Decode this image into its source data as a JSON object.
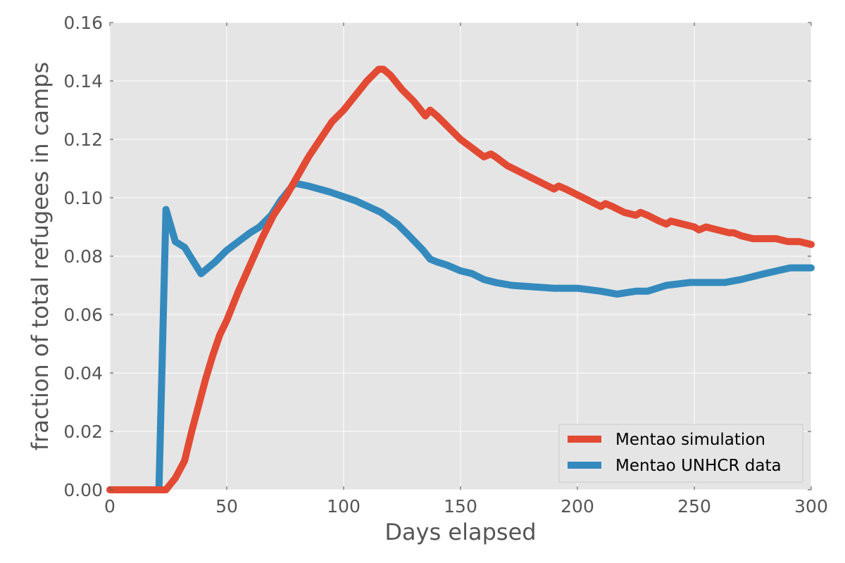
{
  "chart_data": {
    "type": "line",
    "title": "",
    "xlabel": "Days elapsed",
    "ylabel": "fraction of total refugees in camps",
    "xlim": [
      0,
      300
    ],
    "ylim": [
      0,
      0.16
    ],
    "xticks": [
      0,
      50,
      100,
      150,
      200,
      250,
      300
    ],
    "yticks": [
      0.0,
      0.02,
      0.04,
      0.06,
      0.08,
      0.1,
      0.12,
      0.14,
      0.16
    ],
    "xtick_labels": [
      "0",
      "50",
      "100",
      "150",
      "200",
      "250",
      "300"
    ],
    "ytick_labels": [
      "0.00",
      "0.02",
      "0.04",
      "0.06",
      "0.08",
      "0.10",
      "0.12",
      "0.14",
      "0.16"
    ],
    "grid": true,
    "legend_position": "lower-right",
    "series": [
      {
        "name": "Mentao simulation",
        "color": "#E24A33",
        "x": [
          0,
          24,
          26,
          28,
          30,
          32,
          35,
          38,
          41,
          44,
          47,
          50,
          55,
          60,
          65,
          70,
          75,
          80,
          85,
          90,
          95,
          100,
          105,
          110,
          115,
          117,
          120,
          125,
          130,
          135,
          137,
          140,
          145,
          150,
          155,
          160,
          163,
          165,
          170,
          175,
          180,
          185,
          190,
          192,
          195,
          200,
          205,
          210,
          212,
          215,
          220,
          225,
          227,
          230,
          235,
          238,
          240,
          245,
          250,
          252,
          255,
          260,
          265,
          267,
          270,
          275,
          280,
          282,
          285,
          290,
          292,
          295,
          300
        ],
        "y": [
          0.0,
          0.0,
          0.002,
          0.004,
          0.007,
          0.01,
          0.02,
          0.029,
          0.038,
          0.046,
          0.053,
          0.058,
          0.068,
          0.077,
          0.086,
          0.094,
          0.1,
          0.107,
          0.114,
          0.12,
          0.126,
          0.13,
          0.135,
          0.14,
          0.144,
          0.144,
          0.142,
          0.137,
          0.133,
          0.128,
          0.13,
          0.128,
          0.124,
          0.12,
          0.117,
          0.114,
          0.115,
          0.114,
          0.111,
          0.109,
          0.107,
          0.105,
          0.103,
          0.104,
          0.103,
          0.101,
          0.099,
          0.097,
          0.098,
          0.097,
          0.095,
          0.094,
          0.095,
          0.094,
          0.092,
          0.091,
          0.092,
          0.091,
          0.09,
          0.089,
          0.09,
          0.089,
          0.088,
          0.088,
          0.087,
          0.086,
          0.086,
          0.086,
          0.086,
          0.085,
          0.085,
          0.085,
          0.084
        ]
      },
      {
        "name": "Mentao UNHCR data",
        "color": "#348ABD",
        "x": [
          0,
          21,
          24,
          28,
          32,
          39,
          45,
          50,
          55,
          60,
          64,
          69,
          73,
          79,
          85,
          94,
          105,
          116,
          123,
          128,
          134,
          137,
          140,
          144,
          150,
          155,
          160,
          165,
          172,
          190,
          200,
          210,
          217,
          225,
          230,
          238,
          248,
          263,
          270,
          280,
          291,
          300
        ],
        "y": [
          0.0,
          0.0,
          0.096,
          0.085,
          0.083,
          0.074,
          0.078,
          0.082,
          0.085,
          0.088,
          0.09,
          0.094,
          0.099,
          0.105,
          0.104,
          0.102,
          0.099,
          0.095,
          0.091,
          0.087,
          0.082,
          0.079,
          0.078,
          0.077,
          0.075,
          0.074,
          0.072,
          0.071,
          0.07,
          0.069,
          0.069,
          0.068,
          0.067,
          0.068,
          0.068,
          0.07,
          0.071,
          0.071,
          0.072,
          0.074,
          0.076,
          0.076
        ]
      }
    ]
  }
}
